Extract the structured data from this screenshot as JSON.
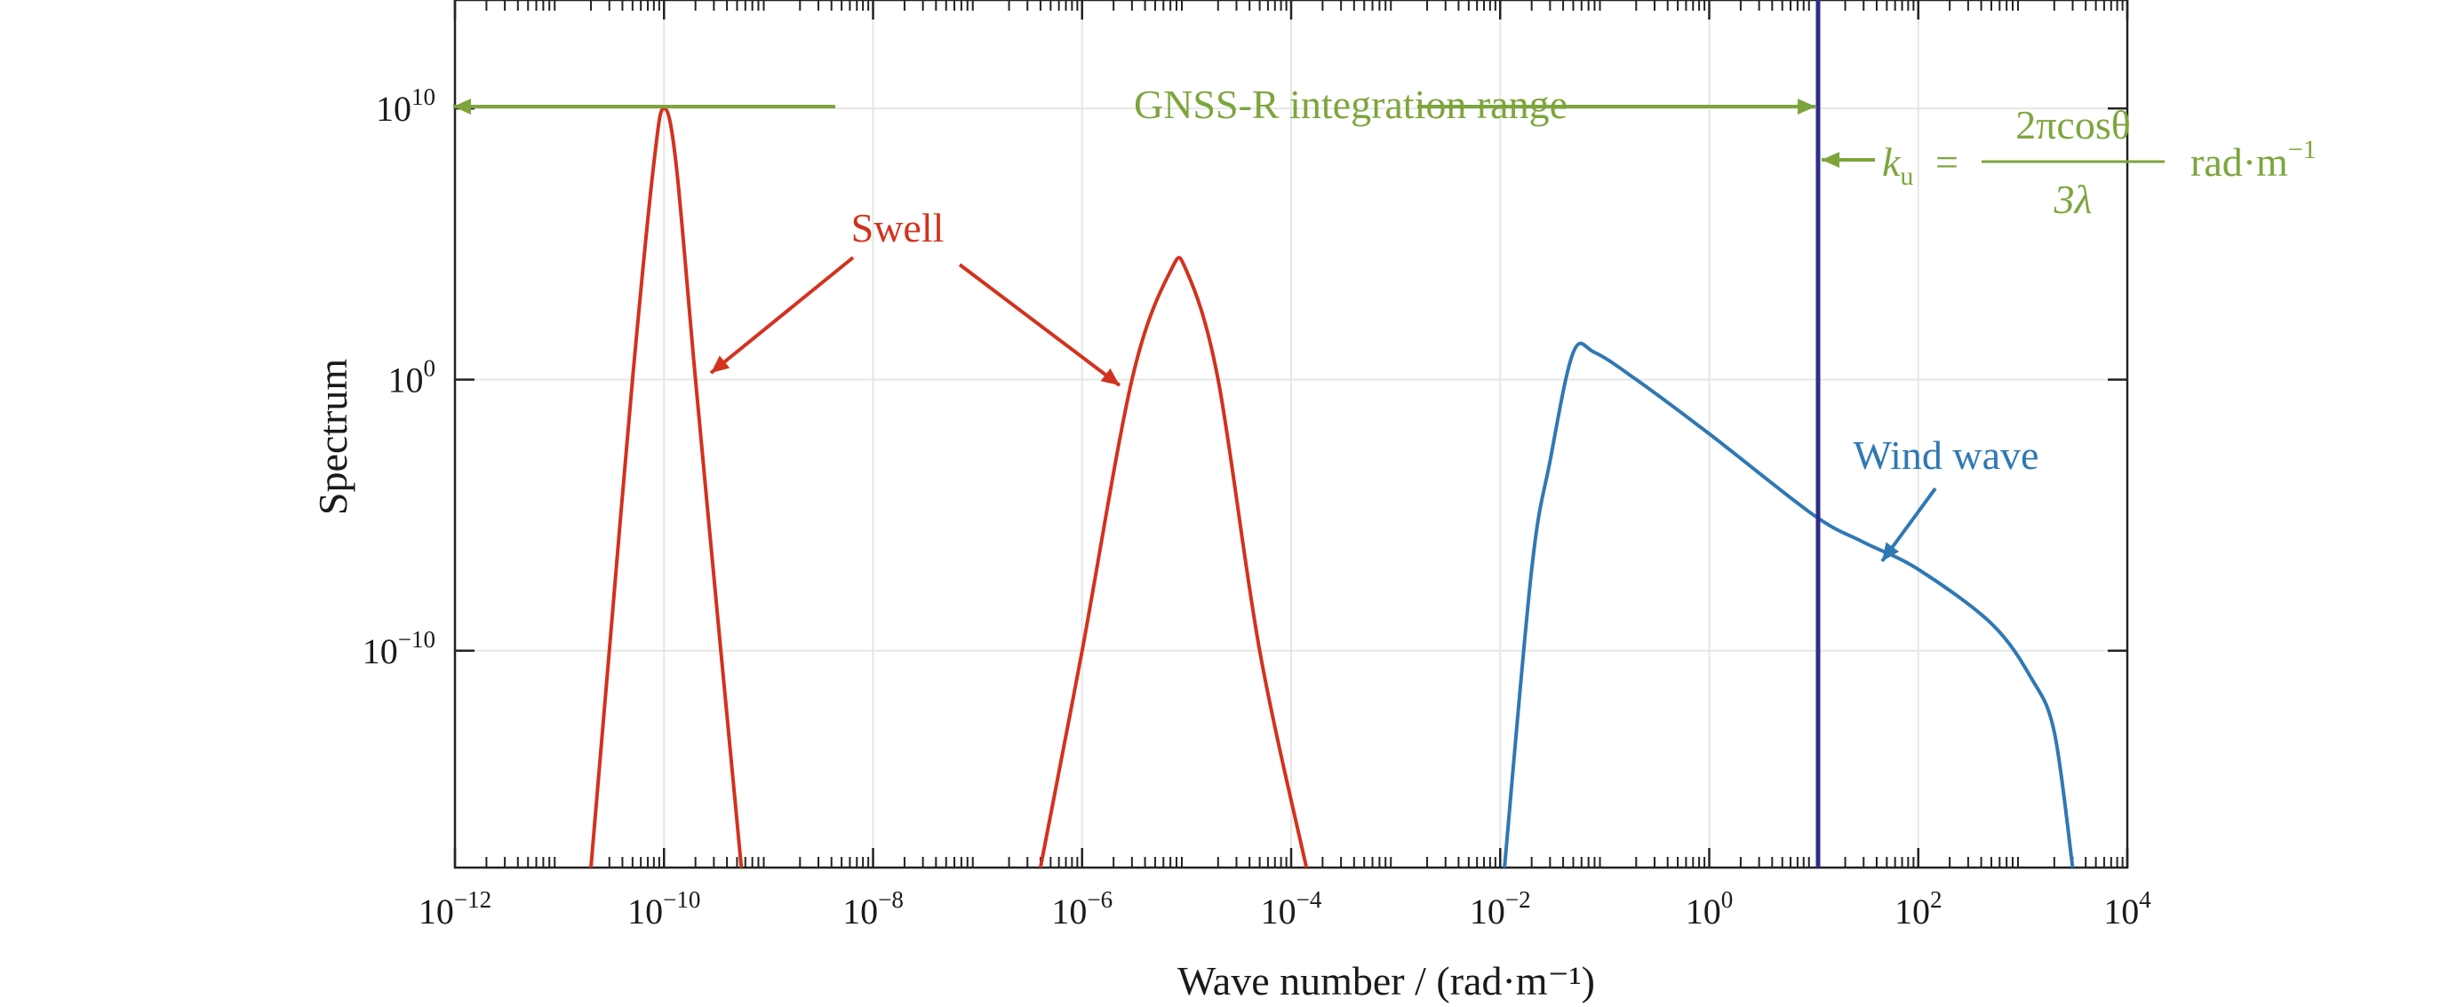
{
  "chart_data": {
    "type": "line",
    "xscale": "log",
    "yscale": "log",
    "xlim": [
      1e-12,
      10000.0
    ],
    "ylim": [
      1e-18,
      100000000000000.0
    ],
    "xlabel": "Wave number / (rad·m⁻¹)",
    "ylabel": "Spectrum",
    "xticks": [
      {
        "value": 1e-12,
        "base": "10",
        "exp": "−12"
      },
      {
        "value": 1e-10,
        "base": "10",
        "exp": "−10"
      },
      {
        "value": 1e-08,
        "base": "10",
        "exp": "−8"
      },
      {
        "value": 1e-06,
        "base": "10",
        "exp": "−6"
      },
      {
        "value": 0.0001,
        "base": "10",
        "exp": "−4"
      },
      {
        "value": 0.01,
        "base": "10",
        "exp": "−2"
      },
      {
        "value": 1.0,
        "base": "10",
        "exp": "0"
      },
      {
        "value": 100.0,
        "base": "10",
        "exp": "2"
      },
      {
        "value": 10000.0,
        "base": "10",
        "exp": "4"
      }
    ],
    "yticks": [
      {
        "value": 10000000000.0,
        "base": "10",
        "exp": "10"
      },
      {
        "value": 1.0,
        "base": "10",
        "exp": "0"
      },
      {
        "value": 1e-10,
        "base": "10",
        "exp": "−10"
      }
    ],
    "grid": true,
    "series": [
      {
        "color": "#d2321e",
        "points": [
          [
            2e-11,
            1e-18
          ],
          [
            3e-11,
            1e-10
          ],
          [
            5e-11,
            1.0
          ],
          [
            8e-11,
            100000000.0
          ],
          [
            1e-10,
            10000000000.0
          ],
          [
            1.3e-10,
            100000000.0
          ],
          [
            2e-10,
            1.0
          ],
          [
            3.5e-10,
            1e-10
          ],
          [
            5.5e-10,
            1e-18
          ]
        ]
      },
      {
        "color": "#d2321e",
        "points": [
          [
            4e-07,
            1e-18
          ],
          [
            1e-06,
            1e-10
          ],
          [
            3e-06,
            1.0
          ],
          [
            7e-06,
            10000.0
          ],
          [
            1e-05,
            10000.0
          ],
          [
            2e-05,
            1.0
          ],
          [
            5e-05,
            1e-10
          ],
          [
            0.00014,
            1e-18
          ]
        ]
      },
      {
        "color": "#2f78b4",
        "points": [
          [
            0.011,
            1e-18
          ],
          [
            0.02,
            1e-07
          ],
          [
            0.03,
            0.001
          ],
          [
            0.05,
            10.0
          ],
          [
            0.08,
            10.0
          ],
          [
            0.2,
            1.0
          ],
          [
            1,
            0.01
          ],
          [
            10,
            1e-05
          ],
          [
            30,
            1e-06
          ],
          [
            100,
            1e-07
          ],
          [
            500,
            1e-09
          ],
          [
            1200,
            1e-11
          ],
          [
            2000,
            1e-13
          ],
          [
            3000,
            1e-18
          ]
        ]
      }
    ],
    "vline": {
      "x": 11,
      "color": "#2e2e8a"
    }
  },
  "annotations": {
    "swell_label": "Swell",
    "wind_label": "Wind wave",
    "range_label": "GNSS-R integration range",
    "ku_lhs": "k",
    "ku_sub": "u",
    "ku_eq": "=",
    "ku_num": "2πcosθ",
    "ku_den": "3λ",
    "ku_unit": "rad·m",
    "ku_unit_exp": "−1"
  },
  "colors": {
    "swell": "#d2321e",
    "wind": "#2f78b4",
    "range": "#7da53c",
    "ku_line": "#2e2e8a"
  }
}
